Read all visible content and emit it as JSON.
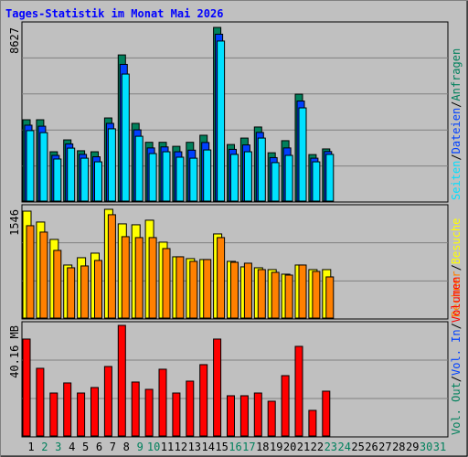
{
  "legend_separator": "/",
  "chart_data": [
    {
      "type": "bar",
      "title": "Tages-Statistik im Monat Mai 2026",
      "ylim": [
        0,
        8627
      ],
      "yticks": [
        8627
      ],
      "series": [
        {
          "name": "Anfragen",
          "color": "#00805c",
          "values": [
            4040,
            4040,
            2450,
            3040,
            2500,
            2450,
            4130,
            7260,
            3860,
            2920,
            2920,
            2720,
            2920,
            3270,
            8627,
            2810,
            3130,
            3680,
            2400,
            3000,
            5310,
            2310,
            2590,
            null,
            null,
            null,
            null,
            null,
            null,
            null,
            null
          ]
        },
        {
          "name": "Dateien",
          "color": "#0040ff",
          "values": [
            3770,
            3720,
            2270,
            2840,
            2320,
            2200,
            3860,
            6790,
            3540,
            2640,
            2690,
            2450,
            2530,
            2910,
            8290,
            2570,
            2790,
            3410,
            2160,
            2640,
            4970,
            2130,
            2460,
            null,
            null,
            null,
            null,
            null,
            null,
            null,
            null
          ]
        },
        {
          "name": "Seiten",
          "color": "#00e0ff",
          "values": [
            3500,
            3400,
            2090,
            2630,
            2130,
            1950,
            3590,
            6310,
            3220,
            2360,
            2450,
            2180,
            2130,
            2540,
            7950,
            2320,
            2450,
            3130,
            1910,
            2270,
            4630,
            1950,
            2320,
            null,
            null,
            null,
            null,
            null,
            null,
            null,
            null
          ]
        }
      ]
    },
    {
      "type": "bar",
      "ylim": [
        0,
        1546
      ],
      "yticks": [
        1546
      ],
      "series": [
        {
          "name": "Besuche",
          "color": "#ffff00",
          "values": [
            1520,
            1365,
            1118,
            754,
            858,
            923,
            1546,
            1339,
            1326,
            1391,
            1079,
            871,
            845,
            832,
            1196,
            806,
            728,
            715,
            689,
            624,
            754,
            689,
            689,
            null,
            null,
            null,
            null,
            null,
            null,
            null,
            null
          ]
        },
        {
          "name": "Rechner",
          "color": "#ff8000",
          "values": [
            1313,
            1222,
            962,
            715,
            741,
            819,
            1469,
            1157,
            1144,
            1144,
            988,
            871,
            806,
            832,
            1144,
            793,
            780,
            689,
            650,
            611,
            754,
            663,
            585,
            null,
            null,
            null,
            null,
            null,
            null,
            null,
            null
          ]
        }
      ]
    },
    {
      "type": "bar",
      "categories": [
        "1",
        "2",
        "3",
        "4",
        "5",
        "6",
        "7",
        "8",
        "9",
        "10",
        "11",
        "12",
        "13",
        "14",
        "15",
        "16",
        "17",
        "18",
        "19",
        "20",
        "21",
        "22",
        "23",
        "24",
        "25",
        "26",
        "27",
        "28",
        "29",
        "30",
        "31"
      ],
      "category_colors": [
        "#000000",
        "#00805c",
        "#00805c",
        "#000000",
        "#000000",
        "#000000",
        "#000000",
        "#000000",
        "#00805c",
        "#00805c",
        "#000000",
        "#000000",
        "#000000",
        "#000000",
        "#000000",
        "#00805c",
        "#00805c",
        "#000000",
        "#000000",
        "#000000",
        "#000000",
        "#000000",
        "#00805c",
        "#00805c",
        "#000000",
        "#000000",
        "#000000",
        "#000000",
        "#000000",
        "#00805c",
        "#00805c"
      ],
      "ylim": [
        0,
        40.16
      ],
      "yticks": [
        {
          "value": 40.16,
          "label": "40.16 MB"
        }
      ],
      "series": [
        {
          "name": "Volumen",
          "color": "#ff0000",
          "values": [
            35.19,
            24.57,
            15.6,
            19.26,
            15.6,
            17.6,
            25.23,
            40.16,
            19.59,
            16.93,
            24.24,
            15.6,
            19.92,
            25.9,
            35.19,
            14.61,
            14.61,
            15.6,
            12.62,
            21.91,
            32.54,
            9.3,
            16.27,
            null,
            null,
            null,
            null,
            null,
            null,
            null,
            null
          ]
        },
        {
          "name": "Vol. In",
          "color": "#0040ff",
          "values": [
            null,
            null,
            null,
            null,
            null,
            null,
            null,
            null,
            null,
            null,
            null,
            null,
            null,
            null,
            null,
            null,
            null,
            null,
            null,
            null,
            null,
            null,
            null,
            null,
            null,
            null,
            null,
            null,
            null,
            null,
            null
          ]
        },
        {
          "name": "Vol. Out",
          "color": "#00805c",
          "values": [
            null,
            null,
            null,
            null,
            null,
            null,
            null,
            null,
            null,
            null,
            null,
            null,
            null,
            null,
            null,
            null,
            null,
            null,
            null,
            null,
            null,
            null,
            null,
            null,
            null,
            null,
            null,
            null,
            null,
            null,
            null
          ]
        }
      ]
    }
  ]
}
